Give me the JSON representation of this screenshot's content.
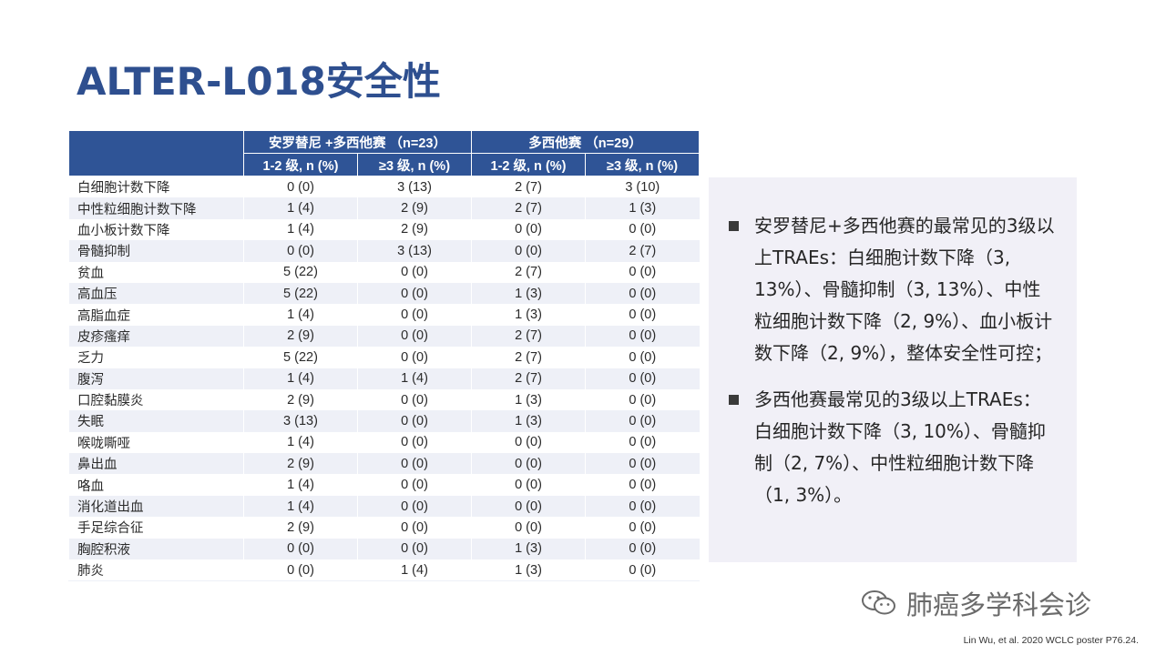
{
  "title": "ALTER-L018安全性",
  "table": {
    "group_headers": [
      "安罗替尼 +多西他赛 （n=23）",
      "多西他赛 （n=29）"
    ],
    "sub_headers": [
      "1-2 级, n (%)",
      "≥3 级, n (%)",
      "1-2 级, n (%)",
      "≥3 级, n (%)"
    ],
    "rows": [
      {
        "name": "白细胞计数下降",
        "v": [
          "0 (0)",
          "3 (13)",
          "2 (7)",
          "3 (10)"
        ]
      },
      {
        "name": "中性粒细胞计数下降",
        "v": [
          "1 (4)",
          "2 (9)",
          "2 (7)",
          "1 (3)"
        ]
      },
      {
        "name": "血小板计数下降",
        "v": [
          "1 (4)",
          "2 (9)",
          "0 (0)",
          "0 (0)"
        ]
      },
      {
        "name": "骨髓抑制",
        "v": [
          "0 (0)",
          "3 (13)",
          "0 (0)",
          "2 (7)"
        ]
      },
      {
        "name": "贫血",
        "v": [
          "5 (22)",
          "0 (0)",
          "2 (7)",
          "0 (0)"
        ]
      },
      {
        "name": "高血压",
        "v": [
          "5 (22)",
          "0 (0)",
          "1 (3)",
          "0 (0)"
        ]
      },
      {
        "name": "高脂血症",
        "v": [
          "1 (4)",
          "0 (0)",
          "1 (3)",
          "0 (0)"
        ]
      },
      {
        "name": "皮疹瘙痒",
        "v": [
          "2 (9)",
          "0 (0)",
          "2 (7)",
          "0 (0)"
        ]
      },
      {
        "name": "乏力",
        "v": [
          "5 (22)",
          "0 (0)",
          "2 (7)",
          "0 (0)"
        ]
      },
      {
        "name": "腹泻",
        "v": [
          "1 (4)",
          "1 (4)",
          "2 (7)",
          "0 (0)"
        ]
      },
      {
        "name": "口腔黏膜炎",
        "v": [
          "2 (9)",
          "0 (0)",
          "1 (3)",
          "0 (0)"
        ]
      },
      {
        "name": "失眠",
        "v": [
          "3 (13)",
          "0 (0)",
          "1 (3)",
          "0 (0)"
        ]
      },
      {
        "name": "喉咙嘶哑",
        "v": [
          "1 (4)",
          "0 (0)",
          "0 (0)",
          "0 (0)"
        ]
      },
      {
        "name": "鼻出血",
        "v": [
          "2 (9)",
          "0 (0)",
          "0 (0)",
          "0 (0)"
        ]
      },
      {
        "name": "咯血",
        "v": [
          "1 (4)",
          "0 (0)",
          "0 (0)",
          "0 (0)"
        ]
      },
      {
        "name": "消化道出血",
        "v": [
          "1 (4)",
          "0 (0)",
          "0 (0)",
          "0 (0)"
        ]
      },
      {
        "name": "手足综合征",
        "v": [
          "2 (9)",
          "0 (0)",
          "0 (0)",
          "0 (0)"
        ]
      },
      {
        "name": "胸腔积液",
        "v": [
          "0 (0)",
          "0 (0)",
          "1 (3)",
          "0 (0)"
        ]
      },
      {
        "name": "肺炎",
        "v": [
          "0 (0)",
          "1 (4)",
          "1 (3)",
          "0 (0)"
        ]
      }
    ]
  },
  "notes": [
    "安罗替尼+多西他赛的最常见的3级以上TRAEs：白细胞计数下降（3, 13%）、骨髓抑制（3, 13%）、中性粒细胞计数下降（2, 9%）、血小板计数下降（2, 9%），整体安全性可控；",
    "多西他赛最常见的3级以上TRAEs：白细胞计数下降（3, 10%）、骨髓抑制（2, 7%）、中性粒细胞计数下降（1, 3%）。"
  ],
  "watermark": {
    "text": "肺癌多学科会诊",
    "icon": "wechat-icon"
  },
  "citation": "Lin Wu, et al. 2020  WCLC poster P76.24.",
  "colors": {
    "title": "#2e4f8f",
    "header_bg": "#2f5496",
    "stripe": "#eef0f7",
    "notes_bg": "#f1f0f7"
  }
}
